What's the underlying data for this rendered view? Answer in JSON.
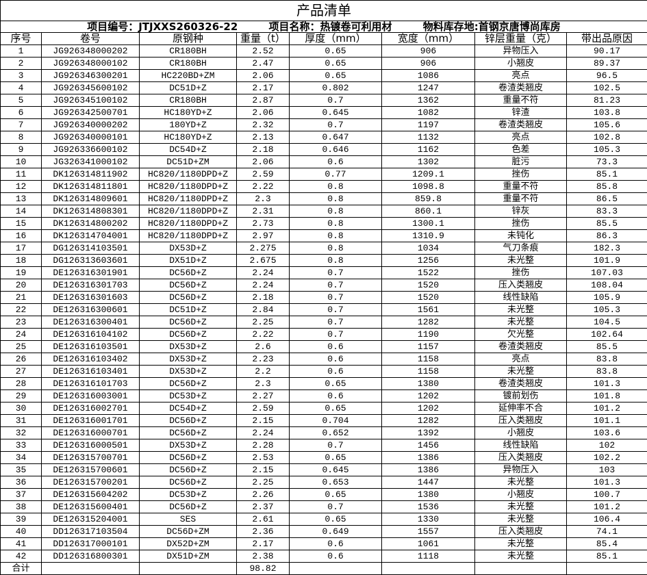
{
  "title": "产品清单",
  "info": {
    "project_no": "项目编号：JTJXXS260326-22",
    "project_name": "项目名称：热镀卷可利用材",
    "storage": "物料库存地:首钢京唐博尚库房"
  },
  "columns": [
    "序号",
    "卷号",
    "原钢种",
    "重量（t）",
    "厚度（mm）",
    "宽度（mm）",
    "锌层重量（克）",
    "带出品原因"
  ],
  "rows": [
    [
      "1",
      "JG926348000202",
      "CR180BH",
      "2.52",
      "0.65",
      "906",
      "异物压入",
      "90.17"
    ],
    [
      "2",
      "JG926348000102",
      "CR180BH",
      "2.47",
      "0.65",
      "906",
      "小翘皮",
      "89.37"
    ],
    [
      "3",
      "JG926346300201",
      "HC220BD+ZM",
      "2.06",
      "0.65",
      "1086",
      "亮点",
      "96.5"
    ],
    [
      "4",
      "JG926345600102",
      "DC51D+Z",
      "2.17",
      "0.802",
      "1247",
      "卷渣类翘皮",
      "102.5"
    ],
    [
      "5",
      "JG926345100102",
      "CR180BH",
      "2.87",
      "0.7",
      "1362",
      "重量不符",
      "81.23"
    ],
    [
      "6",
      "JG926342500701",
      "HC180YD+Z",
      "2.06",
      "0.645",
      "1082",
      "锌渣",
      "103.8"
    ],
    [
      "7",
      "JG926340000202",
      "180YD+Z",
      "2.32",
      "0.7",
      "1197",
      "卷渣类翘皮",
      "105.6"
    ],
    [
      "8",
      "JG926340000101",
      "HC180YD+Z",
      "2.13",
      "0.647",
      "1132",
      "亮点",
      "102.8"
    ],
    [
      "9",
      "JG926336600102",
      "DC54D+Z",
      "2.18",
      "0.646",
      "1162",
      "色差",
      "105.3"
    ],
    [
      "10",
      "JG326341000102",
      "DC51D+ZM",
      "2.06",
      "0.6",
      "1302",
      "脏污",
      "73.3"
    ],
    [
      "11",
      "DK126314811902",
      "HC820/1180DPD+Z",
      "2.59",
      "0.77",
      "1209.1",
      "挫伤",
      "85.1"
    ],
    [
      "12",
      "DK126314811801",
      "HC820/1180DPD+Z",
      "2.22",
      "0.8",
      "1098.8",
      "重量不符",
      "85.8"
    ],
    [
      "13",
      "DK126314809601",
      "HC820/1180DPD+Z",
      "2.3",
      "0.8",
      "859.8",
      "重量不符",
      "86.5"
    ],
    [
      "14",
      "DK126314808301",
      "HC820/1180DPD+Z",
      "2.31",
      "0.8",
      "860.1",
      "锌灰",
      "83.3"
    ],
    [
      "15",
      "DK126314800202",
      "HC820/1180DPD+Z",
      "2.73",
      "0.8",
      "1300.1",
      "挫伤",
      "85.5"
    ],
    [
      "16",
      "DK126314704001",
      "HC820/1180DPD+Z",
      "2.97",
      "0.8",
      "1310.9",
      "未钝化",
      "86.3"
    ],
    [
      "17",
      "DG126314103501",
      "DX53D+Z",
      "2.275",
      "0.8",
      "1034",
      "气刀条痕",
      "182.3"
    ],
    [
      "18",
      "DG126313603601",
      "DX51D+Z",
      "2.675",
      "0.8",
      "1256",
      "未光整",
      "101.9"
    ],
    [
      "19",
      "DE126316301901",
      "DC56D+Z",
      "2.24",
      "0.7",
      "1522",
      "挫伤",
      "107.03"
    ],
    [
      "20",
      "DE126316301703",
      "DC56D+Z",
      "2.24",
      "0.7",
      "1520",
      "压入类翘皮",
      "108.04"
    ],
    [
      "21",
      "DE126316301603",
      "DC56D+Z",
      "2.18",
      "0.7",
      "1520",
      "线性缺陷",
      "105.9"
    ],
    [
      "22",
      "DE126316300601",
      "DC51D+Z",
      "2.84",
      "0.7",
      "1561",
      "未光整",
      "105.3"
    ],
    [
      "23",
      "DE126316300401",
      "DC56D+Z",
      "2.25",
      "0.7",
      "1282",
      "未光整",
      "104.5"
    ],
    [
      "24",
      "DE126316104102",
      "DC56D+Z",
      "2.22",
      "0.7",
      "1190",
      "欠光整",
      "102.64"
    ],
    [
      "25",
      "DE126316103501",
      "DX53D+Z",
      "2.6",
      "0.6",
      "1157",
      "卷渣类翘皮",
      "85.5"
    ],
    [
      "26",
      "DE126316103402",
      "DX53D+Z",
      "2.23",
      "0.6",
      "1158",
      "亮点",
      "83.8"
    ],
    [
      "27",
      "DE126316103401",
      "DX53D+Z",
      "2.2",
      "0.6",
      "1158",
      "未光整",
      "83.8"
    ],
    [
      "28",
      "DE126316101703",
      "DC56D+Z",
      "2.3",
      "0.65",
      "1380",
      "卷渣类翘皮",
      "101.3"
    ],
    [
      "29",
      "DE126316003001",
      "DC53D+Z",
      "2.27",
      "0.6",
      "1202",
      "镀前划伤",
      "101.8"
    ],
    [
      "30",
      "DE126316002701",
      "DC54D+Z",
      "2.59",
      "0.65",
      "1202",
      "延伸率不合",
      "101.2"
    ],
    [
      "31",
      "DE126316001701",
      "DC56D+Z",
      "2.15",
      "0.704",
      "1282",
      "压入类翘皮",
      "101.1"
    ],
    [
      "32",
      "DE126316000701",
      "DC56D+Z",
      "2.24",
      "0.652",
      "1392",
      "小翘皮",
      "103.6"
    ],
    [
      "33",
      "DE126316000501",
      "DX53D+Z",
      "2.28",
      "0.7",
      "1456",
      "线性缺陷",
      "102"
    ],
    [
      "34",
      "DE126315700701",
      "DC56D+Z",
      "2.53",
      "0.65",
      "1386",
      "压入类翘皮",
      "102.2"
    ],
    [
      "35",
      "DE126315700601",
      "DC56D+Z",
      "2.15",
      "0.645",
      "1386",
      "异物压入",
      "103"
    ],
    [
      "36",
      "DE126315700201",
      "DC56D+Z",
      "2.25",
      "0.653",
      "1447",
      "未光整",
      "101.3"
    ],
    [
      "37",
      "DE126315604202",
      "DC53D+Z",
      "2.26",
      "0.65",
      "1380",
      "小翘皮",
      "100.7"
    ],
    [
      "38",
      "DE126315600401",
      "DC56D+Z",
      "2.37",
      "0.7",
      "1536",
      "未光整",
      "101.2"
    ],
    [
      "39",
      "DE126315204001",
      "SES",
      "2.61",
      "0.65",
      "1330",
      "未光整",
      "106.4"
    ],
    [
      "40",
      "DD126317103504",
      "DC56D+ZM",
      "2.36",
      "0.649",
      "1557",
      "压入类翘皮",
      "74.1"
    ],
    [
      "41",
      "DD126317000101",
      "DX52D+ZM",
      "2.17",
      "0.6",
      "1061",
      "未光整",
      "85.4"
    ],
    [
      "42",
      "DD126316800301",
      "DX51D+ZM",
      "2.38",
      "0.6",
      "1118",
      "未光整",
      "85.1"
    ]
  ],
  "total": {
    "label": "合计",
    "weight": "98.82"
  }
}
